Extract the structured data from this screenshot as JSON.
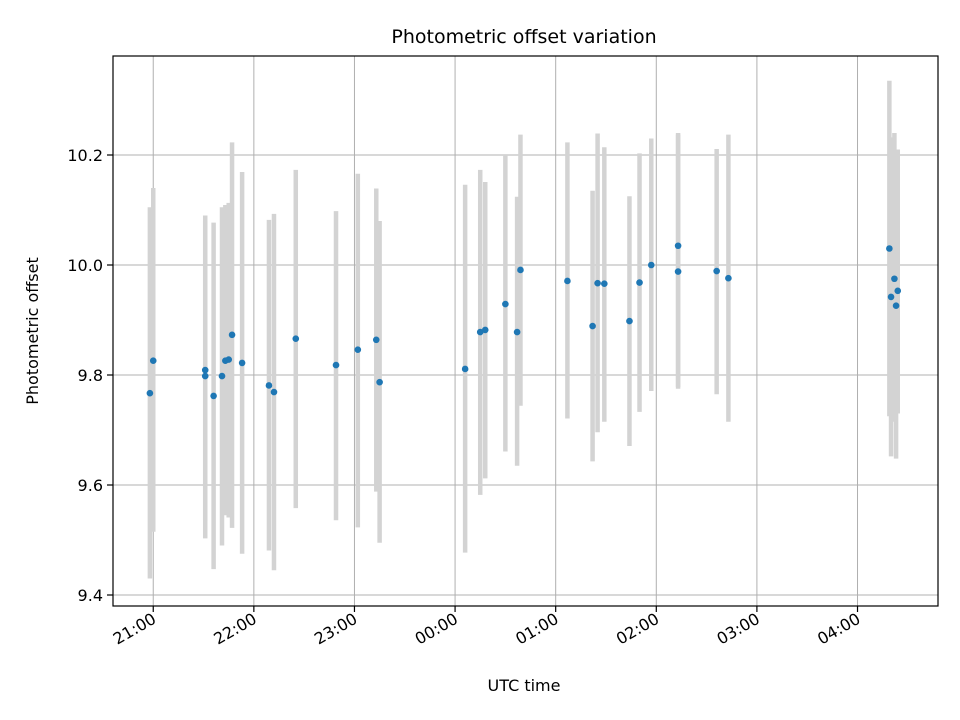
{
  "chart_data": {
    "type": "scatter",
    "title": "Photometric offset variation",
    "xlabel": "UTC time",
    "ylabel": "Photometric offset",
    "grid": true,
    "xaxis_kind": "time",
    "xlim": [
      "20:36",
      "04:48"
    ],
    "ylim": [
      9.38,
      10.38
    ],
    "x_ticks": [
      "21:00",
      "22:00",
      "23:00",
      "00:00",
      "01:00",
      "02:00",
      "03:00",
      "04:00"
    ],
    "y_ticks": [
      9.4,
      9.6,
      9.8,
      10.0,
      10.2
    ],
    "y_tick_labels": [
      "9.4",
      "9.6",
      "9.8",
      "10.0",
      "10.2"
    ],
    "colors": {
      "marker": "#1f77b4",
      "errorbar": "#d3d3d3",
      "grid": "#b0b0b0"
    },
    "x": [
      "20:58",
      "21:00",
      "21:31",
      "21:31",
      "21:36",
      "21:41",
      "21:43",
      "21:45",
      "21:47",
      "21:53",
      "22:09",
      "22:12",
      "22:25",
      "22:49",
      "23:02",
      "23:13",
      "23:15",
      "00:06",
      "00:15",
      "00:18",
      "00:30",
      "00:37",
      "00:39",
      "01:07",
      "01:22",
      "01:25",
      "01:29",
      "01:44",
      "01:50",
      "01:57",
      "02:13",
      "02:13",
      "02:36",
      "02:43",
      "04:19",
      "04:20",
      "04:22",
      "04:23",
      "04:24"
    ],
    "y": [
      9.767,
      9.826,
      9.798,
      9.809,
      9.762,
      9.798,
      9.826,
      9.828,
      9.873,
      9.822,
      9.781,
      9.769,
      9.866,
      9.818,
      9.846,
      9.864,
      9.787,
      9.811,
      9.878,
      9.882,
      9.929,
      9.878,
      9.991,
      9.971,
      9.889,
      9.967,
      9.966,
      9.898,
      9.968,
      10.0,
      10.035,
      9.988,
      9.989,
      9.976,
      10.03,
      9.942,
      9.975,
      9.926,
      9.953
    ],
    "y_err_low": [
      9.43,
      9.515,
      9.503,
      9.535,
      9.447,
      9.49,
      9.545,
      9.541,
      9.522,
      9.475,
      9.481,
      9.445,
      9.558,
      9.536,
      9.523,
      9.588,
      9.495,
      9.477,
      9.582,
      9.612,
      9.661,
      9.635,
      9.744,
      9.721,
      9.643,
      9.696,
      9.715,
      9.671,
      9.733,
      9.771,
      9.775,
      9.778,
      9.765,
      9.715,
      9.725,
      9.652,
      9.715,
      9.648,
      9.73
    ],
    "y_err_high": [
      10.105,
      10.14,
      10.09,
      10.08,
      10.077,
      10.105,
      10.109,
      10.113,
      10.223,
      10.169,
      10.082,
      10.093,
      10.173,
      10.098,
      10.166,
      10.139,
      10.08,
      10.146,
      10.173,
      10.151,
      10.2,
      10.124,
      10.237,
      10.223,
      10.135,
      10.239,
      10.214,
      10.125,
      10.203,
      10.23,
      10.24,
      10.237,
      10.211,
      10.237,
      10.335,
      10.232,
      10.24,
      10.207,
      10.21
    ]
  }
}
